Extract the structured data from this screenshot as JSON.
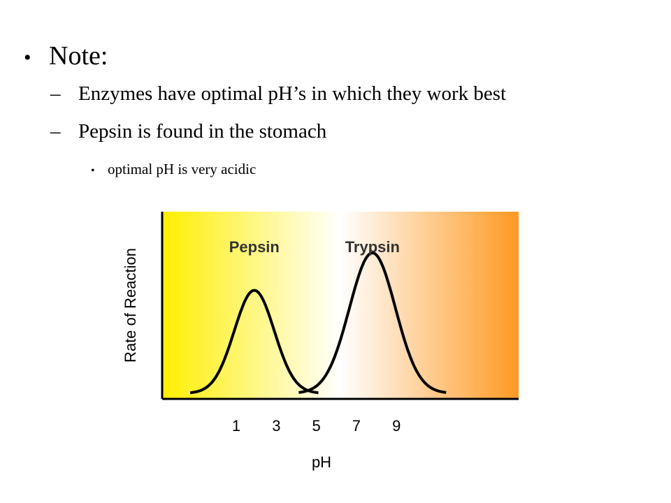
{
  "slide": {
    "bullets": {
      "heading": "Note:",
      "sub1": "Enzymes have optimal pH’s in which they work best",
      "sub2": "Pepsin is found in the stomach",
      "sub2_detail": "optimal pH is very acidic",
      "level1_mark": "•",
      "level2_mark": "–",
      "level3_mark": "•"
    }
  },
  "chart_data": {
    "type": "line",
    "xlabel": "pH",
    "ylabel": "Rate of Reaction",
    "x_ticks": [
      1,
      3,
      5,
      7,
      9
    ],
    "xlim": [
      -2.7,
      15.1
    ],
    "background_gradient": [
      "#ffee00",
      "#ffffff",
      "#ff9922"
    ],
    "grid": false,
    "series": [
      {
        "name": "Pepsin",
        "peak_ph": 1.9,
        "peak_height": 0.55,
        "width": 1.0
      },
      {
        "name": "Trypsin",
        "peak_ph": 7.8,
        "peak_height": 0.75,
        "width": 1.15
      }
    ]
  }
}
